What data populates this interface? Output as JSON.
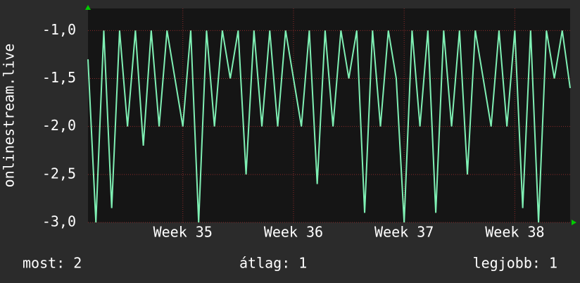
{
  "chart_data": {
    "type": "line",
    "y_label": "onlinestream.live",
    "x": [
      0,
      0.5,
      1,
      1.5,
      2,
      2.5,
      3,
      3.5,
      4,
      4.5,
      5,
      5.5,
      6,
      6.5,
      7,
      7.5,
      8,
      8.5,
      9,
      9.5,
      10,
      10.5,
      11,
      11.5,
      12,
      12.5,
      13,
      13.5,
      14,
      14.5,
      15,
      15.5,
      16,
      16.5,
      17,
      17.5,
      18,
      18.5,
      19,
      19.5,
      20,
      20.5,
      21,
      21.5,
      22,
      22.5,
      23,
      23.5,
      24,
      24.5,
      25,
      25.5,
      26,
      26.5,
      27,
      27.5,
      28,
      28.5,
      29,
      29.5,
      30,
      30.5
    ],
    "series": [
      {
        "name": "onlinestream.live",
        "color": "#7ff0b4",
        "values": [
          -1.3,
          -3.0,
          -1.0,
          -2.85,
          -1.0,
          -2.0,
          -1.0,
          -2.2,
          -1.0,
          -2.0,
          -1.0,
          -1.5,
          -2.0,
          -1.0,
          -3.0,
          -1.0,
          -2.0,
          -1.0,
          -1.5,
          -1.0,
          -2.5,
          -1.0,
          -2.0,
          -1.0,
          -2.0,
          -1.0,
          -1.5,
          -2.0,
          -1.0,
          -2.6,
          -1.0,
          -2.0,
          -1.0,
          -1.5,
          -1.0,
          -2.9,
          -1.0,
          -2.0,
          -1.0,
          -1.5,
          -3.0,
          -1.0,
          -2.0,
          -1.0,
          -2.9,
          -1.0,
          -2.0,
          -1.0,
          -2.5,
          -1.0,
          -1.5,
          -2.0,
          -1.0,
          -2.0,
          -1.0,
          -2.85,
          -1.0,
          -3.0,
          -1.0,
          -1.5,
          -1.0,
          -1.6
        ]
      }
    ],
    "xlim": [
      0,
      30.5
    ],
    "xticks": [
      {
        "value": 6,
        "label": "Week 35"
      },
      {
        "value": 13,
        "label": "Week 36"
      },
      {
        "value": 20,
        "label": "Week 37"
      },
      {
        "value": 27,
        "label": "Week 38"
      }
    ],
    "ylim": [
      -3.0,
      -0.77
    ],
    "yticks": [
      {
        "value": -3.0,
        "label": "-3,0"
      },
      {
        "value": -2.5,
        "label": "-2,5"
      },
      {
        "value": -2.0,
        "label": "-2,0"
      },
      {
        "value": -1.5,
        "label": "-1,5"
      },
      {
        "value": -1.0,
        "label": "-1,0"
      }
    ],
    "grid": true
  },
  "footer": {
    "current": "most: 2",
    "average": "átlag: 1",
    "best": "legjobb: 1"
  }
}
